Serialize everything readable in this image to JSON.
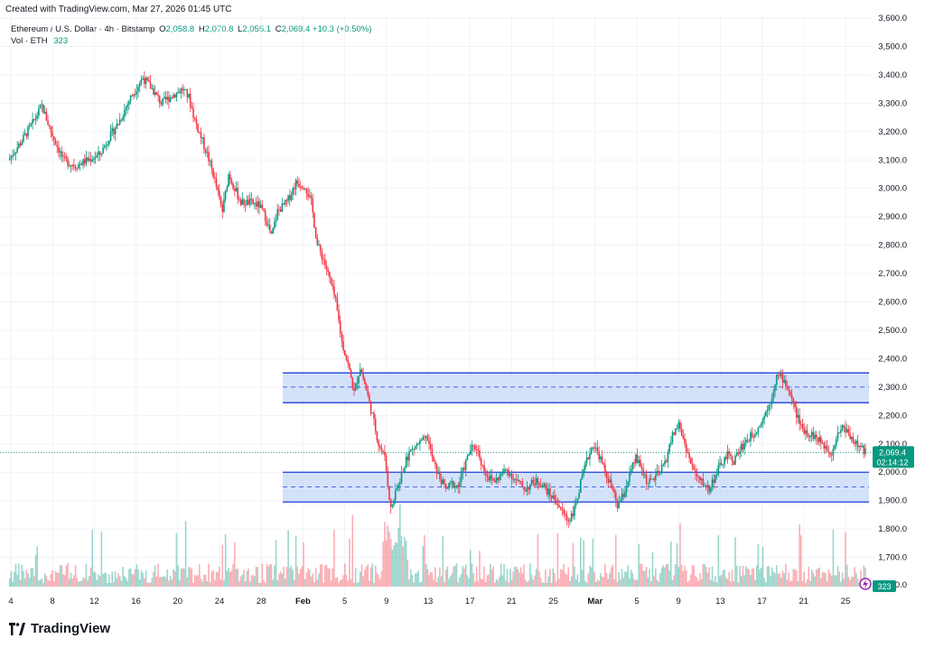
{
  "header": {
    "created_with": "Created with TradingView.com, Mar 27, 2026 01:45 UTC"
  },
  "legend": {
    "symbol": "Ethereum / U.S. Dollar · 4h · Bitstamp",
    "o_label": "O",
    "o_value": "2,058.8",
    "h_label": "H",
    "h_value": "2,070.8",
    "l_label": "L",
    "l_value": "2,055.1",
    "c_label": "C",
    "c_value": "2,069.4",
    "change": "+10.3 (+0.50%)",
    "vol_label": "Vol · ETH",
    "vol_value": "323"
  },
  "price_tag": {
    "price": "2,069.4",
    "countdown": "02:14:12"
  },
  "volume_tag": "323",
  "footer": {
    "brand": "TradingView"
  },
  "colors": {
    "up": "#089981",
    "down": "#f23645",
    "zone_fill": "#c5d8f7",
    "zone_line": "#1e3fd9",
    "grid": "#f0f3fa"
  },
  "chart_data": {
    "type": "candlestick",
    "title": "Ethereum / U.S. Dollar · 4h · Bitstamp",
    "ylim": [
      1600,
      3600
    ],
    "y_ticks": [
      1700,
      1800,
      1900,
      2000,
      2100,
      2200,
      2300,
      2400,
      2500,
      2600,
      2700,
      2800,
      2900,
      3000,
      3100,
      3200,
      3300,
      3400,
      3500,
      3600
    ],
    "y_tick_labels": [
      "1,700.0",
      "1,800.0",
      "1,900.0",
      "2,000.0",
      "2,100.0",
      "2,200.0",
      "2,300.0",
      "2,400.0",
      "2,500.0",
      "2,600.0",
      "2,700.0",
      "2,800.0",
      "2,900.0",
      "3,000.0",
      "3,100.0",
      "3,200.0",
      "3,300.0",
      "3,400.0",
      "3,500.0",
      "3,600.0"
    ],
    "y_bottom_label": "0.0",
    "x_tick_labels": [
      "4",
      "8",
      "12",
      "16",
      "20",
      "24",
      "28",
      "Feb",
      "5",
      "9",
      "13",
      "17",
      "21",
      "25",
      "Mar",
      "5",
      "9",
      "13",
      "17",
      "21",
      "25"
    ],
    "last_price": 2069.4,
    "zones": [
      {
        "top": 2350,
        "bottom": 2245,
        "mid": 2300
      },
      {
        "top": 2000,
        "bottom": 1895,
        "mid": 1948
      }
    ],
    "price_path": [
      [
        0,
        3100
      ],
      [
        8,
        3160
      ],
      [
        16,
        3230
      ],
      [
        22,
        3290
      ],
      [
        28,
        3200
      ],
      [
        36,
        3100
      ],
      [
        44,
        3080
      ],
      [
        52,
        3100
      ],
      [
        60,
        3120
      ],
      [
        66,
        3180
      ],
      [
        72,
        3230
      ],
      [
        80,
        3320
      ],
      [
        88,
        3390
      ],
      [
        94,
        3350
      ],
      [
        100,
        3300
      ],
      [
        108,
        3330
      ],
      [
        114,
        3350
      ],
      [
        118,
        3320
      ],
      [
        122,
        3240
      ],
      [
        126,
        3180
      ],
      [
        130,
        3120
      ],
      [
        134,
        3050
      ],
      [
        138,
        2960
      ],
      [
        140,
        2920
      ],
      [
        144,
        3050
      ],
      [
        148,
        3000
      ],
      [
        152,
        2950
      ],
      [
        158,
        2950
      ],
      [
        164,
        2940
      ],
      [
        168,
        2900
      ],
      [
        172,
        2830
      ],
      [
        176,
        2920
      ],
      [
        182,
        2950
      ],
      [
        188,
        3020
      ],
      [
        194,
        3010
      ],
      [
        198,
        2950
      ],
      [
        202,
        2800
      ],
      [
        206,
        2750
      ],
      [
        210,
        2680
      ],
      [
        214,
        2600
      ],
      [
        218,
        2460
      ],
      [
        222,
        2380
      ],
      [
        226,
        2280
      ],
      [
        230,
        2370
      ],
      [
        234,
        2290
      ],
      [
        238,
        2200
      ],
      [
        242,
        2100
      ],
      [
        246,
        2050
      ],
      [
        250,
        1870
      ],
      [
        254,
        1940
      ],
      [
        258,
        2010
      ],
      [
        262,
        2070
      ],
      [
        268,
        2100
      ],
      [
        274,
        2120
      ],
      [
        278,
        2030
      ],
      [
        282,
        1980
      ],
      [
        286,
        1940
      ],
      [
        290,
        1960
      ],
      [
        294,
        1950
      ],
      [
        298,
        2020
      ],
      [
        302,
        2080
      ],
      [
        306,
        2090
      ],
      [
        310,
        2020
      ],
      [
        314,
        1980
      ],
      [
        318,
        1970
      ],
      [
        322,
        1990
      ],
      [
        326,
        2010
      ],
      [
        330,
        1980
      ],
      [
        334,
        1960
      ],
      [
        338,
        1940
      ],
      [
        342,
        1960
      ],
      [
        346,
        1970
      ],
      [
        350,
        1950
      ],
      [
        354,
        1920
      ],
      [
        358,
        1900
      ],
      [
        362,
        1860
      ],
      [
        366,
        1830
      ],
      [
        370,
        1870
      ],
      [
        374,
        1960
      ],
      [
        378,
        2040
      ],
      [
        382,
        2100
      ],
      [
        386,
        2060
      ],
      [
        390,
        2000
      ],
      [
        394,
        1950
      ],
      [
        398,
        1880
      ],
      [
        402,
        1920
      ],
      [
        406,
        1990
      ],
      [
        410,
        2050
      ],
      [
        414,
        2010
      ],
      [
        418,
        1960
      ],
      [
        422,
        1980
      ],
      [
        426,
        2000
      ],
      [
        430,
        2050
      ],
      [
        434,
        2130
      ],
      [
        438,
        2170
      ],
      [
        442,
        2100
      ],
      [
        446,
        2030
      ],
      [
        450,
        1980
      ],
      [
        454,
        1960
      ],
      [
        458,
        1940
      ],
      [
        462,
        1990
      ],
      [
        466,
        2030
      ],
      [
        470,
        2060
      ],
      [
        474,
        2040
      ],
      [
        478,
        2080
      ],
      [
        482,
        2110
      ],
      [
        486,
        2130
      ],
      [
        490,
        2160
      ],
      [
        494,
        2200
      ],
      [
        498,
        2250
      ],
      [
        502,
        2340
      ],
      [
        506,
        2330
      ],
      [
        510,
        2290
      ],
      [
        514,
        2220
      ],
      [
        518,
        2160
      ],
      [
        522,
        2140
      ],
      [
        526,
        2130
      ],
      [
        530,
        2110
      ],
      [
        534,
        2090
      ],
      [
        538,
        2070
      ],
      [
        542,
        2140
      ],
      [
        546,
        2160
      ],
      [
        550,
        2130
      ],
      [
        554,
        2100
      ],
      [
        558,
        2080
      ],
      [
        560,
        2069
      ]
    ],
    "volume_scale_note": "volume bars along bottom, relative heights"
  }
}
